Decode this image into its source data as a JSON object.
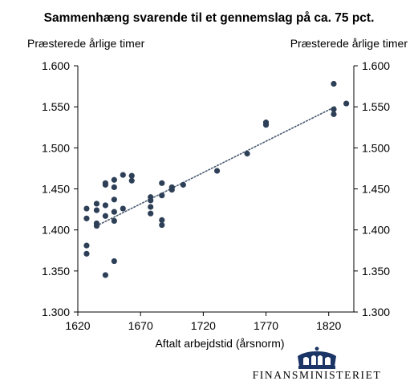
{
  "chart_data": {
    "type": "scatter",
    "title": "Sammenhæng svarende til et gennemslag på ca. 75 pct.",
    "ylabel_left": "Præsterede årlige timer",
    "ylabel_right": "Præsterede årlige timer",
    "xlabel": "Aftalt arbejdstid (årsnorm)",
    "xlim": [
      1620,
      1840
    ],
    "ylim": [
      1300,
      1600
    ],
    "xticks": [
      1620,
      1670,
      1720,
      1770,
      1820
    ],
    "xtick_labels": [
      "1620",
      "1670",
      "1720",
      "1770",
      "1820"
    ],
    "yticks": [
      1300,
      1350,
      1400,
      1450,
      1500,
      1550,
      1600
    ],
    "ytick_labels": [
      "1.300",
      "1.350",
      "1.400",
      "1.450",
      "1.500",
      "1.550",
      "1.600"
    ],
    "grid": false,
    "marker_color": "#2e4057",
    "trendline": {
      "style": "dotted",
      "color": "#4a5a70",
      "from": [
        1635,
        1405
      ],
      "to": [
        1825,
        1550
      ]
    },
    "points": [
      {
        "x": 1627,
        "y": 1426
      },
      {
        "x": 1627,
        "y": 1414
      },
      {
        "x": 1627,
        "y": 1381
      },
      {
        "x": 1627,
        "y": 1371
      },
      {
        "x": 1635,
        "y": 1432
      },
      {
        "x": 1635,
        "y": 1424
      },
      {
        "x": 1635,
        "y": 1408
      },
      {
        "x": 1635,
        "y": 1405
      },
      {
        "x": 1642,
        "y": 1457
      },
      {
        "x": 1642,
        "y": 1455
      },
      {
        "x": 1642,
        "y": 1430
      },
      {
        "x": 1642,
        "y": 1417
      },
      {
        "x": 1642,
        "y": 1345
      },
      {
        "x": 1649,
        "y": 1461
      },
      {
        "x": 1649,
        "y": 1452
      },
      {
        "x": 1649,
        "y": 1437
      },
      {
        "x": 1649,
        "y": 1422
      },
      {
        "x": 1649,
        "y": 1411
      },
      {
        "x": 1649,
        "y": 1362
      },
      {
        "x": 1656,
        "y": 1467
      },
      {
        "x": 1656,
        "y": 1426
      },
      {
        "x": 1663,
        "y": 1466
      },
      {
        "x": 1663,
        "y": 1460
      },
      {
        "x": 1678,
        "y": 1440
      },
      {
        "x": 1678,
        "y": 1436
      },
      {
        "x": 1678,
        "y": 1428
      },
      {
        "x": 1678,
        "y": 1420
      },
      {
        "x": 1687,
        "y": 1457
      },
      {
        "x": 1687,
        "y": 1442
      },
      {
        "x": 1687,
        "y": 1412
      },
      {
        "x": 1687,
        "y": 1406
      },
      {
        "x": 1695,
        "y": 1452
      },
      {
        "x": 1695,
        "y": 1449
      },
      {
        "x": 1704,
        "y": 1455
      },
      {
        "x": 1731,
        "y": 1472
      },
      {
        "x": 1755,
        "y": 1493
      },
      {
        "x": 1770,
        "y": 1531
      },
      {
        "x": 1770,
        "y": 1528
      },
      {
        "x": 1824,
        "y": 1578
      },
      {
        "x": 1824,
        "y": 1547
      },
      {
        "x": 1824,
        "y": 1541
      },
      {
        "x": 1834,
        "y": 1554
      }
    ]
  },
  "logo": {
    "text": "FINANSMINISTERIET",
    "crown_color": "#1b3566"
  }
}
